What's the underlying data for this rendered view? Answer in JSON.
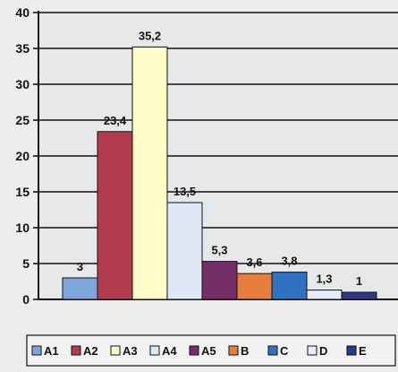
{
  "chart_data": {
    "type": "bar",
    "categories": [
      "A1",
      "A2",
      "A3",
      "A4",
      "A5",
      "B",
      "C",
      "D",
      "E"
    ],
    "values": [
      3,
      23.4,
      35.2,
      13.5,
      5.3,
      3.6,
      3.8,
      1.3,
      1
    ],
    "data_labels": [
      "3",
      "23,4",
      "35,2",
      "13,5",
      "5,3",
      "3,6",
      "3,8",
      "1,3",
      "1"
    ],
    "colors": [
      "#7fa6dc",
      "#b23b4e",
      "#fdfbc6",
      "#dfe8f6",
      "#743066",
      "#e67e3e",
      "#2f72c2",
      "#e6ecfb",
      "#2b3a86"
    ],
    "yticks": [
      0,
      5,
      10,
      15,
      20,
      25,
      30,
      35,
      40
    ],
    "ylim": [
      0,
      40
    ],
    "grid": true,
    "legend": "bottom",
    "title": "",
    "xlabel": "",
    "ylabel": ""
  }
}
